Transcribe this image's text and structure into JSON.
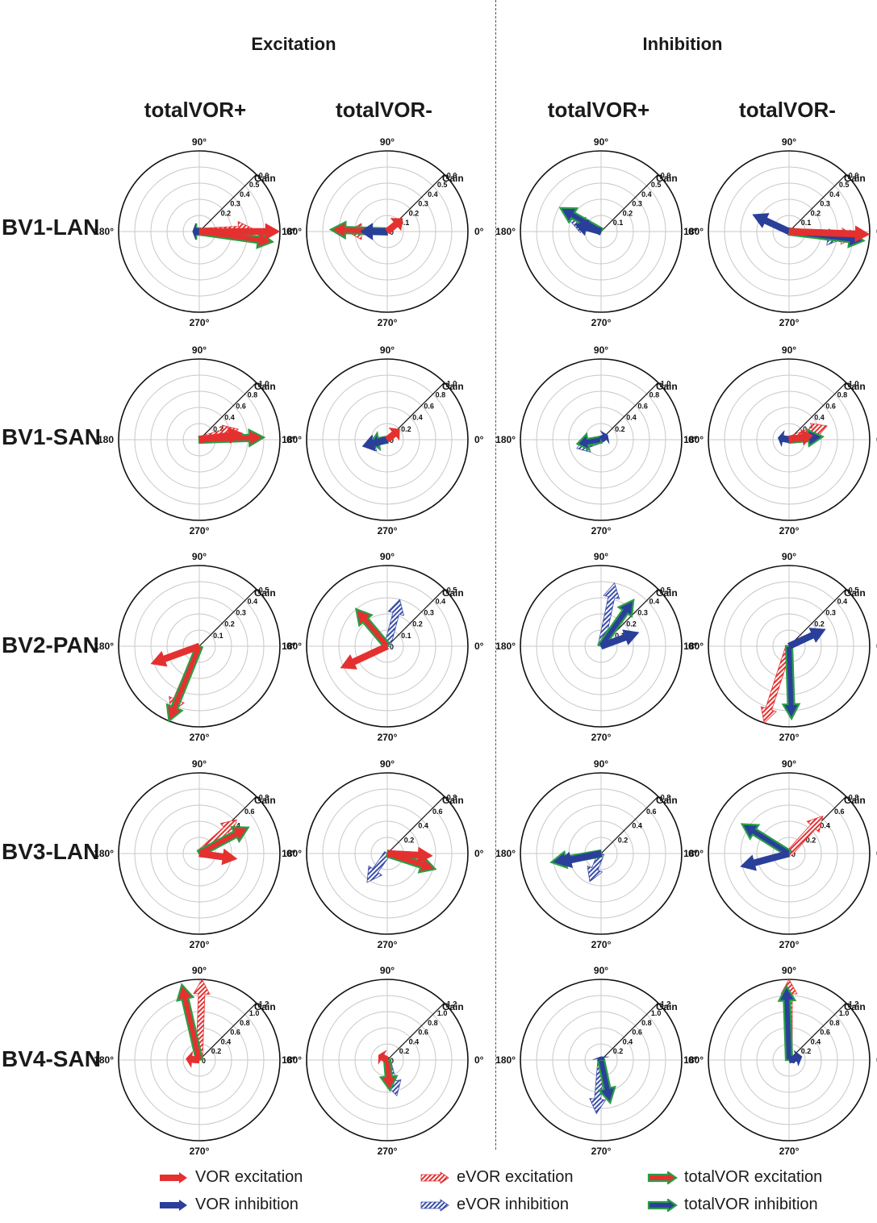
{
  "colors": {
    "vor_exc": "#e53030",
    "vor_inh": "#2a3f9a",
    "evor_exc": "#e53030",
    "evor_inh": "#3b4ea8",
    "total_fill": "#2a9d46",
    "grid": "#c8c8c8"
  },
  "sections": {
    "excitation": "Excitation",
    "inhibition": "Inhibition"
  },
  "columns": [
    "totalVOR+",
    "totalVOR-",
    "totalVOR+",
    "totalVOR-"
  ],
  "rows": [
    "BV1-LAN",
    "BV1-SAN",
    "BV2-PAN",
    "BV3-LAN",
    "BV4-SAN"
  ],
  "polar": {
    "angle_top": "90°",
    "angle_bottom": "270°",
    "angle_right": "0°",
    "angle_left": "180°",
    "angle_left_alt": "180",
    "radial_title": "Gain"
  },
  "legend": [
    {
      "label": "VOR excitation",
      "style": "solid",
      "color": "#e53030"
    },
    {
      "label": "VOR inhibition",
      "style": "solid",
      "color": "#2a3f9a"
    },
    {
      "label": "eVOR excitation",
      "style": "hatch",
      "color": "#e53030"
    },
    {
      "label": "eVOR inhibition",
      "style": "hatch",
      "color": "#3b4ea8"
    },
    {
      "label": "totalVOR excitation",
      "style": "outline",
      "color": "#e53030"
    },
    {
      "label": "totalVOR inhibition",
      "style": "outline",
      "color": "#2a3f9a"
    }
  ],
  "chart_data": [
    {
      "row": "BV1-LAN",
      "col": "Excitation totalVOR+",
      "type": "polar-vector",
      "rmax": 0.6,
      "ticks": [
        "0.2",
        "0.3",
        "0.4",
        "0.5",
        "0.6"
      ],
      "vectors": [
        {
          "kind": "vor_exc",
          "angle": 0,
          "gain": 0.62
        },
        {
          "kind": "evor_exc",
          "angle": 3,
          "gain": 0.4
        },
        {
          "kind": "total_exc",
          "angle": -8,
          "gain": 0.55
        },
        {
          "kind": "vor_inh",
          "angle": 180,
          "gain": 0.05
        },
        {
          "kind": "evor_inh",
          "angle": 180,
          "gain": 0.04
        },
        {
          "kind": "total_inh",
          "angle": 180,
          "gain": 0.04
        }
      ]
    },
    {
      "row": "BV1-LAN",
      "col": "Excitation totalVOR-",
      "type": "polar-vector",
      "rmax": 0.6,
      "ticks": [
        "0",
        "0.1",
        "0.2",
        "0.3",
        "0.4",
        "0.5",
        "0.6"
      ],
      "vectors": [
        {
          "kind": "vor_exc",
          "angle": 40,
          "gain": 0.15
        },
        {
          "kind": "evor_exc",
          "angle": 180,
          "gain": 0.3
        },
        {
          "kind": "total_exc",
          "angle": 178,
          "gain": 0.42
        },
        {
          "kind": "vor_inh",
          "angle": 180,
          "gain": 0.2
        },
        {
          "kind": "evor_inh",
          "angle": 180,
          "gain": 0.2
        }
      ]
    },
    {
      "row": "BV1-LAN",
      "col": "Inhibition totalVOR+",
      "type": "polar-vector",
      "rmax": 0.6,
      "ticks": [
        "0.1",
        "0.2",
        "0.3",
        "0.4",
        "0.5",
        "0.6"
      ],
      "vectors": [
        {
          "kind": "evor_inh",
          "angle": 160,
          "gain": 0.25
        },
        {
          "kind": "total_inh",
          "angle": 150,
          "gain": 0.35
        },
        {
          "kind": "vor_inh",
          "angle": 165,
          "gain": 0.2
        }
      ]
    },
    {
      "row": "BV1-LAN",
      "col": "Inhibition totalVOR-",
      "type": "polar-vector",
      "rmax": 0.6,
      "ticks": [
        "0",
        "0.1",
        "0.2",
        "0.3",
        "0.4",
        "0.5",
        "0.6"
      ],
      "vectors": [
        {
          "kind": "vor_exc",
          "angle": -2,
          "gain": 0.62
        },
        {
          "kind": "evor_exc",
          "angle": -5,
          "gain": 0.5
        },
        {
          "kind": "total_inh",
          "angle": -7,
          "gain": 0.56
        },
        {
          "kind": "vor_inh",
          "angle": 155,
          "gain": 0.3
        },
        {
          "kind": "evor_inh",
          "angle": -8,
          "gain": 0.4
        }
      ]
    },
    {
      "row": "BV1-SAN",
      "col": "Excitation totalVOR+",
      "type": "polar-vector",
      "rmax": 1.0,
      "ticks": [
        "0",
        "0.2",
        "0.4",
        "0.6",
        "0.8",
        "1.0"
      ],
      "vectors": [
        {
          "kind": "evor_exc",
          "angle": 15,
          "gain": 0.5
        },
        {
          "kind": "total_exc",
          "angle": 2,
          "gain": 0.8
        },
        {
          "kind": "vor_exc",
          "angle": 8,
          "gain": 0.55
        }
      ]
    },
    {
      "row": "BV1-SAN",
      "col": "Excitation totalVOR-",
      "type": "polar-vector",
      "rmax": 1.0,
      "ticks": [
        "0",
        "0.2",
        "0.4",
        "0.6",
        "0.8",
        "1.0"
      ],
      "vectors": [
        {
          "kind": "vor_exc",
          "angle": 40,
          "gain": 0.2
        },
        {
          "kind": "evor_inh",
          "angle": 195,
          "gain": 0.3
        },
        {
          "kind": "total_inh",
          "angle": 190,
          "gain": 0.2
        },
        {
          "kind": "vor_inh",
          "angle": 195,
          "gain": 0.32
        }
      ]
    },
    {
      "row": "BV1-SAN",
      "col": "Inhibition totalVOR+",
      "type": "polar-vector",
      "rmax": 1.0,
      "ticks": [
        "0.2",
        "0.4",
        "0.6",
        "0.8",
        "1.0"
      ],
      "vectors": [
        {
          "kind": "evor_inh",
          "angle": 200,
          "gain": 0.32
        },
        {
          "kind": "total_inh",
          "angle": 190,
          "gain": 0.3
        },
        {
          "kind": "vor_inh",
          "angle": 35,
          "gain": 0.1
        }
      ]
    },
    {
      "row": "BV1-SAN",
      "col": "Inhibition totalVOR-",
      "type": "polar-vector",
      "rmax": 1.0,
      "ticks": [
        "0.2",
        "0.4",
        "0.6",
        "0.8",
        "1.0"
      ],
      "vectors": [
        {
          "kind": "evor_exc",
          "angle": 20,
          "gain": 0.5
        },
        {
          "kind": "total_inh",
          "angle": 5,
          "gain": 0.42
        },
        {
          "kind": "vor_inh",
          "angle": 170,
          "gain": 0.14
        },
        {
          "kind": "vor_exc",
          "angle": 10,
          "gain": 0.3
        }
      ]
    },
    {
      "row": "BV2-PAN",
      "col": "Excitation totalVOR+",
      "type": "polar-vector",
      "rmax": 0.5,
      "ticks": [
        "0.1",
        "0.2",
        "0.3",
        "0.4",
        "0.5"
      ],
      "vectors": [
        {
          "kind": "vor_exc",
          "angle": 200,
          "gain": 0.32
        },
        {
          "kind": "evor_exc",
          "angle": 247,
          "gain": 0.45
        },
        {
          "kind": "total_exc",
          "angle": 248,
          "gain": 0.5
        }
      ]
    },
    {
      "row": "BV2-PAN",
      "col": "Excitation totalVOR-",
      "type": "polar-vector",
      "rmax": 0.5,
      "ticks": [
        "0",
        "0.1",
        "0.2",
        "0.3",
        "0.4",
        "0.5"
      ],
      "vectors": [
        {
          "kind": "vor_exc",
          "angle": 205,
          "gain": 0.32
        },
        {
          "kind": "evor_inh",
          "angle": 75,
          "gain": 0.3
        },
        {
          "kind": "total_exc",
          "angle": 130,
          "gain": 0.3
        }
      ]
    },
    {
      "row": "BV2-PAN",
      "col": "Inhibition totalVOR+",
      "type": "polar-vector",
      "rmax": 0.5,
      "ticks": [
        "0.1",
        "0.2",
        "0.3",
        "0.4",
        "0.5"
      ],
      "vectors": [
        {
          "kind": "evor_inh",
          "angle": 78,
          "gain": 0.4
        },
        {
          "kind": "total_inh",
          "angle": 55,
          "gain": 0.35
        },
        {
          "kind": "vor_inh",
          "angle": 20,
          "gain": 0.25
        }
      ]
    },
    {
      "row": "BV2-PAN",
      "col": "Inhibition totalVOR-",
      "type": "polar-vector",
      "rmax": 0.5,
      "ticks": [
        "0.2",
        "0.3",
        "0.4",
        "0.5"
      ],
      "vectors": [
        {
          "kind": "evor_exc",
          "angle": 252,
          "gain": 0.5
        },
        {
          "kind": "total_inh",
          "angle": 272,
          "gain": 0.45
        },
        {
          "kind": "vor_inh",
          "angle": 25,
          "gain": 0.25
        }
      ]
    },
    {
      "row": "BV3-LAN",
      "col": "Excitation totalVOR+",
      "type": "polar-vector",
      "rmax": 0.8,
      "ticks": [
        "0",
        "0.2",
        "0.4",
        "0.6",
        "0.8"
      ],
      "vectors": [
        {
          "kind": "evor_exc",
          "angle": 42,
          "gain": 0.5
        },
        {
          "kind": "total_exc",
          "angle": 28,
          "gain": 0.55
        },
        {
          "kind": "vor_exc",
          "angle": -8,
          "gain": 0.38
        }
      ]
    },
    {
      "row": "BV3-LAN",
      "col": "Excitation totalVOR-",
      "type": "polar-vector",
      "rmax": 0.8,
      "ticks": [
        "0.2",
        "0.4",
        "0.6",
        "0.8"
      ],
      "vectors": [
        {
          "kind": "vor_exc",
          "angle": -3,
          "gain": 0.45
        },
        {
          "kind": "total_exc",
          "angle": -18,
          "gain": 0.5
        },
        {
          "kind": "evor_inh",
          "angle": 235,
          "gain": 0.35
        }
      ]
    },
    {
      "row": "BV3-LAN",
      "col": "Inhibition totalVOR+",
      "type": "polar-vector",
      "rmax": 0.8,
      "ticks": [
        "0.2",
        "0.4",
        "0.6",
        "0.8"
      ],
      "vectors": [
        {
          "kind": "vor_inh",
          "angle": 192,
          "gain": 0.45
        },
        {
          "kind": "total_inh",
          "angle": 190,
          "gain": 0.5
        },
        {
          "kind": "evor_inh",
          "angle": 248,
          "gain": 0.3
        }
      ]
    },
    {
      "row": "BV3-LAN",
      "col": "Inhibition totalVOR-",
      "type": "polar-vector",
      "rmax": 0.8,
      "ticks": [
        "0",
        "0.2",
        "0.4",
        "0.6",
        "0.8"
      ],
      "vectors": [
        {
          "kind": "evor_exc",
          "angle": 48,
          "gain": 0.5
        },
        {
          "kind": "total_inh",
          "angle": 148,
          "gain": 0.55
        },
        {
          "kind": "vor_inh",
          "angle": 195,
          "gain": 0.5
        }
      ]
    },
    {
      "row": "BV4-SAN",
      "col": "Excitation totalVOR+",
      "type": "polar-vector",
      "rmax": 1.2,
      "ticks": [
        "0",
        "0.2",
        "0.4",
        "0.6",
        "0.8",
        "1.0",
        "1.2"
      ],
      "vectors": [
        {
          "kind": "evor_exc",
          "angle": 88,
          "gain": 1.2
        },
        {
          "kind": "total_exc",
          "angle": 103,
          "gain": 1.15
        },
        {
          "kind": "vor_exc",
          "angle": 175,
          "gain": 0.2
        }
      ]
    },
    {
      "row": "BV4-SAN",
      "col": "Excitation totalVOR-",
      "type": "polar-vector",
      "rmax": 1.2,
      "ticks": [
        "0",
        "0.2",
        "0.4",
        "0.6",
        "0.8",
        "1.0",
        "1.2"
      ],
      "vectors": [
        {
          "kind": "vor_exc",
          "angle": 150,
          "gain": 0.15
        },
        {
          "kind": "evor_inh",
          "angle": 285,
          "gain": 0.55
        },
        {
          "kind": "total_exc",
          "angle": 275,
          "gain": 0.45
        }
      ]
    },
    {
      "row": "BV4-SAN",
      "col": "Inhibition totalVOR+",
      "type": "polar-vector",
      "rmax": 1.2,
      "ticks": [
        "0.2",
        "0.4",
        "0.6",
        "0.8",
        "1.0",
        "1.2"
      ],
      "vectors": [
        {
          "kind": "evor_inh",
          "angle": 265,
          "gain": 0.8
        },
        {
          "kind": "total_inh",
          "angle": 282,
          "gain": 0.65
        },
        {
          "kind": "vor_inh",
          "angle": 100,
          "gain": 0.05
        }
      ]
    },
    {
      "row": "BV4-SAN",
      "col": "Inhibition totalVOR-",
      "type": "polar-vector",
      "rmax": 1.2,
      "ticks": [
        "0",
        "0.2",
        "0.4",
        "0.6",
        "0.8",
        "1.0",
        "1.2"
      ],
      "vectors": [
        {
          "kind": "evor_exc",
          "angle": 90,
          "gain": 1.2
        },
        {
          "kind": "total_inh",
          "angle": 92,
          "gain": 1.1
        },
        {
          "kind": "vor_inh",
          "angle": 15,
          "gain": 0.2
        }
      ]
    }
  ]
}
